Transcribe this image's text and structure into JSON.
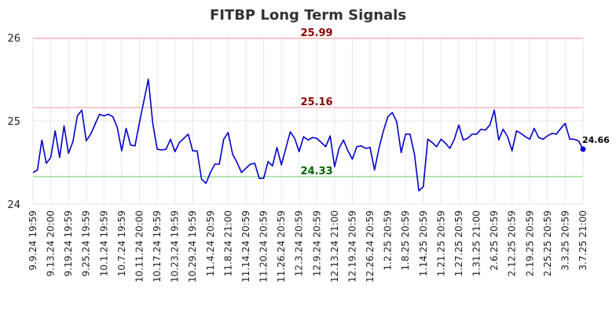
{
  "chart_data": {
    "type": "line",
    "title": "FITBP Long Term Signals",
    "xlabel": "",
    "ylabel": "",
    "ylim": [
      24,
      26
    ],
    "yticks": [
      24,
      25,
      26
    ],
    "grid": true,
    "colors": {
      "line": "#0000cc",
      "upper": "#ffbbbb",
      "lower": "#99dd99",
      "upper_text": "#8b0000",
      "lower_text": "#006400",
      "grid": "#e6e6e6"
    },
    "xtick_labels": [
      "9.9.24 19:59",
      "9.13.24 20:00",
      "9.19.24 19:59",
      "9.25.24 19:59",
      "10.1.24 19:59",
      "10.7.24 19:59",
      "10.11.24 20:00",
      "10.17.24 19:59",
      "10.23.24 19:59",
      "10.29.24 19:59",
      "11.4.24 20:59",
      "11.8.24 21:00",
      "11.14.24 20:59",
      "11.20.24 20:59",
      "11.26.24 20:59",
      "12.3.24 20:59",
      "12.9.24 20:59",
      "12.13.24 21:00",
      "12.19.24 20:59",
      "12.26.24 20:59",
      "1.2.25 20:59",
      "1.8.25 20:59",
      "1.14.25 20:59",
      "1.21.25 20:59",
      "1.27.25 20:59",
      "1.31.25 21:00",
      "2.6.25 20:59",
      "2.12.25 20:59",
      "2.19.25 20:59",
      "2.25.25 20:59",
      "3.3.25 20:59",
      "3.7.25 21:00"
    ],
    "reference_lines": [
      {
        "value": 25.99,
        "label": "25.99",
        "kind": "upper"
      },
      {
        "value": 25.16,
        "label": "25.16",
        "kind": "upper"
      },
      {
        "value": 24.33,
        "label": "24.33",
        "kind": "lower"
      }
    ],
    "last_value_label": "24.66",
    "series": [
      {
        "values": [
          24.38,
          24.41,
          24.77,
          24.49,
          24.56,
          24.88,
          24.56,
          24.94,
          24.61,
          24.75,
          25.06,
          25.13,
          24.76,
          24.84,
          24.96,
          25.08,
          25.06,
          25.08,
          25.05,
          24.92,
          24.64,
          24.91,
          24.71,
          24.7,
          24.98,
          25.24,
          25.5,
          24.97,
          24.66,
          24.65,
          24.66,
          24.78,
          24.63,
          24.74,
          24.79,
          24.84,
          24.64,
          24.64,
          24.3,
          24.25,
          24.38,
          24.48,
          24.48,
          24.78,
          24.86,
          24.6,
          24.5,
          24.38,
          24.43,
          24.48,
          24.49,
          24.31,
          24.31,
          24.51,
          24.46,
          24.68,
          24.47,
          24.67,
          24.87,
          24.79,
          24.63,
          24.81,
          24.77,
          24.8,
          24.79,
          24.74,
          24.69,
          24.82,
          24.45,
          24.67,
          24.77,
          24.64,
          24.54,
          24.69,
          24.7,
          24.67,
          24.68,
          24.41,
          24.67,
          24.88,
          25.05,
          25.1,
          24.99,
          24.62,
          24.84,
          24.84,
          24.6,
          24.16,
          24.21,
          24.78,
          24.74,
          24.69,
          24.78,
          24.73,
          24.67,
          24.78,
          24.95,
          24.77,
          24.79,
          24.84,
          24.84,
          24.9,
          24.89,
          24.95,
          25.13,
          24.77,
          24.9,
          24.81,
          24.64,
          24.88,
          24.85,
          24.81,
          24.78,
          24.91,
          24.8,
          24.78,
          24.82,
          24.85,
          24.84,
          24.91,
          24.97,
          24.78,
          24.78,
          24.76,
          24.66
        ]
      }
    ]
  }
}
